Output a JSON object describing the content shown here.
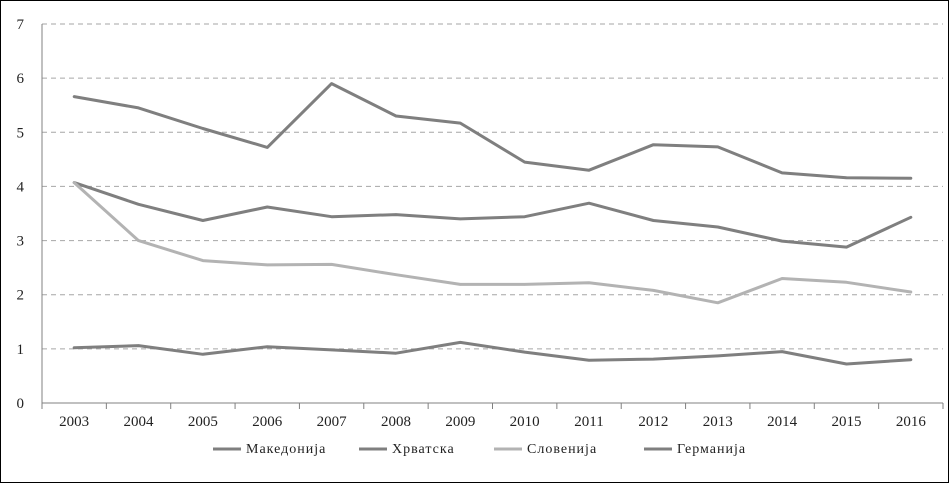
{
  "chart_data": {
    "type": "line",
    "categories": [
      "2003",
      "2004",
      "2005",
      "2006",
      "2007",
      "2008",
      "2009",
      "2010",
      "2011",
      "2012",
      "2013",
      "2014",
      "2015",
      "2016"
    ],
    "ylim": [
      0,
      7
    ],
    "yticks": [
      "0",
      "1",
      "2",
      "3",
      "4",
      "5",
      "6",
      "7"
    ],
    "grid": true,
    "legend_position": "bottom",
    "series": [
      {
        "name": "Македонија",
        "color": "#7f7f7f",
        "values": [
          5.66,
          5.45,
          5.07,
          4.72,
          5.9,
          5.3,
          5.17,
          4.45,
          4.3,
          4.77,
          4.73,
          4.25,
          4.16,
          4.15
        ]
      },
      {
        "name": "Хрватска",
        "color": "#7f7f7f",
        "values": [
          4.07,
          3.67,
          3.37,
          3.62,
          3.44,
          3.48,
          3.4,
          3.44,
          3.69,
          3.37,
          3.25,
          2.99,
          2.88,
          3.43
        ]
      },
      {
        "name": "Словенија",
        "color": "#b3b3b3",
        "values": [
          4.07,
          3.0,
          2.63,
          2.55,
          2.56,
          2.37,
          2.19,
          2.19,
          2.22,
          2.08,
          1.85,
          2.3,
          2.23,
          2.05
        ]
      },
      {
        "name": "Германија",
        "color": "#7f7f7f",
        "values": [
          1.02,
          1.06,
          0.9,
          1.04,
          0.98,
          0.92,
          1.12,
          0.94,
          0.79,
          0.81,
          0.87,
          0.95,
          0.72,
          0.8
        ]
      }
    ]
  }
}
